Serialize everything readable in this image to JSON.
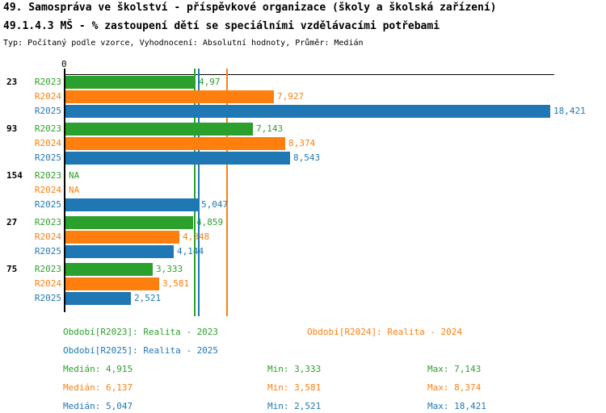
{
  "header": {
    "title": "49. Samospráva ve školství - příspěvkové organizace (školy a školská zařízení)",
    "subtitle": "49.1.4.3 MŠ - % zastoupení dětí se speciálními vzdělávacími potřebami",
    "meta": "Typ: Počítaný podle vzorce, Vyhodnocení: Absolutní hodnoty, Průměr: Medián"
  },
  "colors": {
    "R2023": "#2ca02c",
    "R2024": "#ff7f0e",
    "R2025": "#1f77b4",
    "axis": "#000000"
  },
  "chart_data": {
    "type": "bar",
    "orientation": "horizontal",
    "title": "49.1.4.3 MŠ - % zastoupení dětí se speciálními vzdělávacími potřebami",
    "xlabel": "",
    "ylabel": "",
    "xlim": [
      0,
      18.5
    ],
    "x_zero_label": "0",
    "grid": false,
    "series_names": [
      "R2023",
      "R2024",
      "R2025"
    ],
    "groups": [
      {
        "label": "23",
        "bars": [
          {
            "series": "R2023",
            "value": 4.97,
            "value_label": "4,97"
          },
          {
            "series": "R2024",
            "value": 7.927,
            "value_label": "7,927"
          },
          {
            "series": "R2025",
            "value": 18.421,
            "value_label": "18,421"
          }
        ]
      },
      {
        "label": "93",
        "bars": [
          {
            "series": "R2023",
            "value": 7.143,
            "value_label": "7,143"
          },
          {
            "series": "R2024",
            "value": 8.374,
            "value_label": "8,374"
          },
          {
            "series": "R2025",
            "value": 8.543,
            "value_label": "8,543"
          }
        ]
      },
      {
        "label": "154",
        "bars": [
          {
            "series": "R2023",
            "value": null,
            "value_label": "NA"
          },
          {
            "series": "R2024",
            "value": null,
            "value_label": "NA"
          },
          {
            "series": "R2025",
            "value": 5.047,
            "value_label": "5,047"
          }
        ]
      },
      {
        "label": "27",
        "bars": [
          {
            "series": "R2023",
            "value": 4.859,
            "value_label": "4,859"
          },
          {
            "series": "R2024",
            "value": 4.348,
            "value_label": "4,348"
          },
          {
            "series": "R2025",
            "value": 4.144,
            "value_label": "4,144"
          }
        ]
      },
      {
        "label": "75",
        "bars": [
          {
            "series": "R2023",
            "value": 3.333,
            "value_label": "3,333"
          },
          {
            "series": "R2024",
            "value": 3.581,
            "value_label": "3,581"
          },
          {
            "series": "R2025",
            "value": 2.521,
            "value_label": "2,521"
          }
        ]
      }
    ],
    "median_lines": [
      {
        "series": "R2023",
        "value": 4.915
      },
      {
        "series": "R2025",
        "value": 5.047
      },
      {
        "series": "R2024",
        "value": 6.137
      }
    ]
  },
  "legend": {
    "items": [
      {
        "series": "R2023",
        "label": "Období[R2023]: Realita - 2023"
      },
      {
        "series": "R2024",
        "label": "Období[R2024]: Realita - 2024"
      },
      {
        "series": "R2025",
        "label": "Období[R2025]: Realita - 2025"
      }
    ]
  },
  "stats": {
    "rows": [
      {
        "series": "R2023",
        "median_label": "Medián: 4,915",
        "min_label": "Min: 3,333",
        "max_label": "Max: 7,143"
      },
      {
        "series": "R2024",
        "median_label": "Medián: 6,137",
        "min_label": "Min: 3,581",
        "max_label": "Max: 8,374"
      },
      {
        "series": "R2025",
        "median_label": "Medián: 5,047",
        "min_label": "Min: 2,521",
        "max_label": "Max: 18,421"
      }
    ]
  }
}
